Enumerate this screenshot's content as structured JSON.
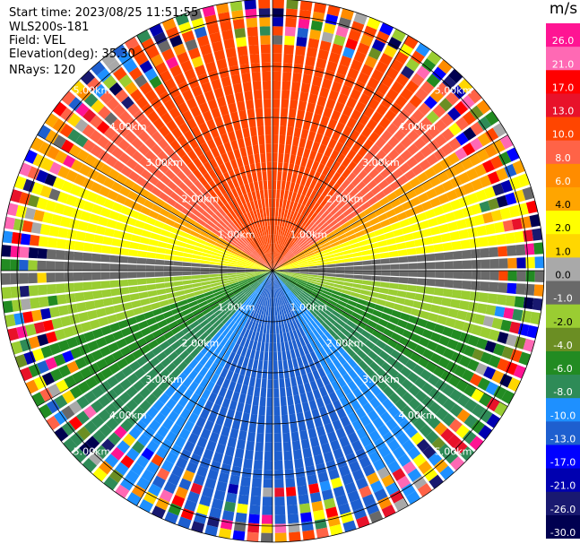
{
  "header": {
    "start_time": "Start time: 2023/08/25 11:51:55",
    "site": "WLS200s-181",
    "field": "Field: VEL",
    "elevation": "Elevation(deg): 35.30",
    "nrays": "NRays: 120"
  },
  "range_ring_labels": [
    "1.00km",
    "2.00km",
    "3.00km",
    "4.00km",
    "5.00km"
  ],
  "colorbar": {
    "unit": "m/s",
    "tick_labels": [
      "26.0",
      "21.0",
      "17.0",
      "13.0",
      "10.0",
      "8.0",
      "6.0",
      "4.0",
      "2.0",
      "1.0",
      "0.0",
      "-1.0",
      "-2.0",
      "-4.0",
      "-6.0",
      "-8.0",
      "-10.0",
      "-13.0",
      "-17.0",
      "-21.0",
      "-26.0",
      "-30.0"
    ],
    "colors": [
      "#ff1493",
      "#ff69b4",
      "#ff0000",
      "#e8122a",
      "#ff4500",
      "#ff6347",
      "#ff8c00",
      "#ffa500",
      "#ffff00",
      "#ffd700",
      "#a9a9a9",
      "#696969",
      "#9acd32",
      "#6b8e23",
      "#228b22",
      "#2e8b57",
      "#1e90ff",
      "#1e5fcf",
      "#0000ff",
      "#0000b0",
      "#191970",
      "#000050"
    ]
  }
}
